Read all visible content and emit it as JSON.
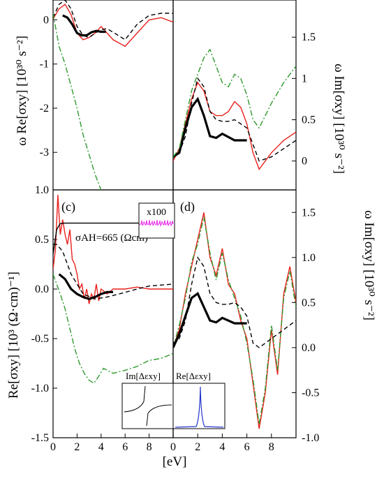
{
  "figure": {
    "xlabel": "[eV]",
    "left_ylabel_top": "ω Re[σxy] [10³⁰ s⁻²]",
    "left_ylabel_bottom": "Re[σxy] [10³ (Ω·cm)⁻¹]",
    "right_ylabel_top": "ω Im[σxy] [10³⁰ s⁻²]",
    "right_ylabel_bottom": "ω Im[σxy] [10³⁰ s⁻²]",
    "panel_labels": [
      "(c)",
      "(d)"
    ],
    "annotation_ah": "σAH=665 (Ωcm)⁻¹",
    "inset_x100_label": "x100",
    "inset_im_label": "Im[Δεxy]",
    "inset_re_label": "Re[Δεxy]"
  },
  "chart_data": [
    {
      "panel": "top-left",
      "type": "line",
      "ylabel": "ω Re[σxy] [10³⁰ s⁻²]",
      "xlim": [
        0,
        10
      ],
      "ylim": [
        -3.85,
        0.45
      ],
      "yticks": [
        "-3",
        "-2",
        "-1",
        "0"
      ],
      "series": [
        {
          "style": "solid",
          "color": "#e8211d",
          "x": [
            0,
            0.5,
            1,
            1.5,
            2,
            2.5,
            3,
            3.5,
            4,
            4.5,
            5,
            6,
            7,
            8,
            9,
            10
          ],
          "y": [
            0.02,
            0.25,
            0.35,
            0.12,
            -0.3,
            -0.45,
            -0.4,
            -0.3,
            -0.15,
            -0.3,
            -0.45,
            -0.6,
            -0.3,
            0.0,
            0.05,
            -0.05
          ]
        },
        {
          "style": "dashed",
          "color": "#000000",
          "x": [
            0,
            0.5,
            1,
            1.5,
            2,
            2.5,
            3,
            3.5,
            4,
            4.5,
            5,
            6,
            7,
            8,
            9,
            10
          ],
          "y": [
            0.05,
            0.35,
            0.45,
            0.25,
            -0.15,
            -0.35,
            -0.4,
            -0.3,
            -0.22,
            -0.2,
            -0.28,
            -0.45,
            -0.1,
            0.1,
            0.15,
            0.15
          ]
        },
        {
          "style": "thick-dotted",
          "color": "#000000",
          "x": [
            0.8,
            1.2,
            1.6,
            2,
            2.4,
            2.8,
            3.2,
            3.6,
            4,
            4.4
          ],
          "y": [
            0.1,
            0.05,
            -0.1,
            -0.3,
            -0.35,
            -0.35,
            -0.28,
            -0.25,
            -0.27,
            -0.27
          ]
        },
        {
          "style": "dashdot",
          "color": "#2e9a2e",
          "x": [
            0,
            0.5,
            1,
            1.5,
            2,
            2.5,
            3,
            3.5,
            4
          ],
          "y": [
            0.15,
            -0.6,
            -1.0,
            -1.5,
            -2.0,
            -2.6,
            -3.05,
            -3.5,
            -3.85
          ]
        }
      ]
    },
    {
      "panel": "top-right",
      "type": "line",
      "ylabel": "ω Im[σxy] [10³⁰ s⁻²]",
      "xlim": [
        0,
        10
      ],
      "ylim": [
        -0.35,
        1.95
      ],
      "yticks": [
        "0",
        "0.5",
        "1",
        "1.5"
      ],
      "series": [
        {
          "style": "solid",
          "color": "#e8211d",
          "x": [
            0,
            0.5,
            1,
            1.5,
            2,
            2.5,
            3,
            3.5,
            4,
            4.5,
            5,
            5.5,
            6,
            6.5,
            7,
            7.5,
            8,
            9,
            10
          ],
          "y": [
            0.0,
            0.15,
            0.45,
            0.75,
            0.95,
            0.85,
            0.6,
            0.55,
            0.55,
            0.6,
            0.72,
            0.65,
            0.45,
            0.1,
            -0.1,
            0.0,
            0.1,
            0.25,
            0.35
          ]
        },
        {
          "style": "dashed",
          "color": "#000000",
          "x": [
            0,
            0.5,
            1,
            1.5,
            2,
            2.5,
            3,
            3.5,
            4,
            4.5,
            5,
            6,
            7,
            8,
            9,
            10
          ],
          "y": [
            0.05,
            0.1,
            0.3,
            0.7,
            1.0,
            0.9,
            0.6,
            0.5,
            0.48,
            0.48,
            0.5,
            0.4,
            0.0,
            0.05,
            0.15,
            0.25
          ]
        },
        {
          "style": "thick-dotted",
          "color": "#000000",
          "x": [
            0,
            0.5,
            1,
            1.5,
            2,
            2.5,
            3,
            3.5,
            4,
            5,
            6
          ],
          "y": [
            0.05,
            0.1,
            0.4,
            0.65,
            0.75,
            0.55,
            0.3,
            0.28,
            0.33,
            0.25,
            0.25
          ]
        },
        {
          "style": "dashdot",
          "color": "#2e9a2e",
          "x": [
            0,
            0.5,
            1,
            1.5,
            2,
            2.5,
            3,
            3.5,
            4,
            4.5,
            5,
            5.5,
            6,
            6.5,
            7,
            7.5,
            8,
            9,
            10
          ],
          "y": [
            0.05,
            0.15,
            0.5,
            0.85,
            1.05,
            1.25,
            1.35,
            1.15,
            0.95,
            0.9,
            1.05,
            1.0,
            0.8,
            0.5,
            0.4,
            0.55,
            0.7,
            0.95,
            1.15
          ]
        }
      ]
    },
    {
      "panel": "bottom-left",
      "type": "line",
      "ylabel": "Re[σxy] [10³ (Ω·cm)⁻¹]",
      "xlim": [
        0,
        10
      ],
      "ylim": [
        -1.5,
        1.0
      ],
      "yticks": [
        "-1.5",
        "-1.0",
        "-0.5",
        "0.0",
        "0.5",
        "1.0"
      ],
      "series": [
        {
          "style": "solid",
          "color": "#e8211d",
          "name": "",
          "x": [
            0,
            0.2,
            0.4,
            0.6,
            0.8,
            1.0,
            1.2,
            1.4,
            1.6,
            1.8,
            2.0,
            2.2,
            2.4,
            2.6,
            2.8,
            3.0,
            3.2,
            3.4,
            3.6,
            3.8,
            4.0,
            4.5,
            5,
            6,
            7,
            8,
            9,
            10
          ],
          "y": [
            0.2,
            0.4,
            0.95,
            0.55,
            0.7,
            0.55,
            0.45,
            0.6,
            0.3,
            0.25,
            0.15,
            0.0,
            0.05,
            -0.1,
            0.0,
            -0.15,
            -0.05,
            -0.1,
            0.05,
            -0.12,
            0.0,
            -0.05,
            0.0,
            0.0,
            0.02,
            0.0,
            0.0,
            0.0
          ]
        },
        {
          "style": "dashed",
          "color": "#000000",
          "x": [
            0,
            0.3,
            0.8,
            1.5,
            2.5,
            3.5,
            4.5,
            5.5,
            7,
            8,
            10
          ],
          "y": [
            0.45,
            0.45,
            0.38,
            0.15,
            -0.05,
            -0.1,
            -0.08,
            -0.05,
            0.0,
            0.03,
            0.05
          ]
        },
        {
          "style": "thick-dotted",
          "color": "#000000",
          "x": [
            0.5,
            1.0,
            1.5,
            2.0,
            2.5,
            3.0,
            3.5,
            4.0,
            4.5,
            5.0
          ],
          "y": [
            0.15,
            0.1,
            0.0,
            -0.05,
            -0.08,
            -0.1,
            -0.08,
            -0.05,
            -0.03,
            -0.03
          ]
        },
        {
          "style": "dashdot",
          "color": "#2e9a2e",
          "x": [
            0,
            0.3,
            0.6,
            1.0,
            1.4,
            1.8,
            2.2,
            2.6,
            3.0,
            3.4,
            3.8,
            4.2,
            5.0,
            6.0,
            7.0,
            8.0,
            9.0,
            10
          ],
          "y": [
            0.15,
            0.05,
            -0.05,
            -0.2,
            -0.4,
            -0.6,
            -0.75,
            -0.85,
            -0.92,
            -0.95,
            -0.88,
            -0.8,
            -0.85,
            -0.82,
            -0.78,
            -0.72,
            -0.7,
            -0.65
          ]
        },
        {
          "style": "solid",
          "color": "#000000",
          "name": "σAH",
          "x": [
            0,
            0.3,
            0.6,
            1.0,
            2,
            4,
            6,
            10
          ],
          "y": [
            0.35,
            0.6,
            0.66,
            0.665,
            0.665,
            0.665,
            0.665,
            0.665
          ]
        }
      ]
    },
    {
      "panel": "bottom-right",
      "type": "line",
      "ylabel": "ω Im[σxy] [10³⁰ s⁻²]",
      "xlim": [
        0,
        10
      ],
      "ylim": [
        -1.0,
        1.75
      ],
      "yticks": [
        "-1.0",
        "-0.5",
        "0.0",
        "0.5",
        "1.0",
        "1.5"
      ],
      "xticks": [
        "0",
        "2",
        "4",
        "6",
        "8"
      ],
      "series": [
        {
          "style": "solid",
          "color": "#e8211d",
          "x": [
            0,
            0.5,
            1,
            1.5,
            2,
            2.5,
            3,
            3.5,
            4,
            4.5,
            5,
            5.5,
            6,
            6.5,
            7,
            7.5,
            8,
            8.5,
            9,
            9.5,
            10
          ],
          "y": [
            0.0,
            0.2,
            0.6,
            0.9,
            1.2,
            1.5,
            1.0,
            0.8,
            1.1,
            0.7,
            0.6,
            0.3,
            0.1,
            -0.4,
            -0.9,
            -0.5,
            0.2,
            -0.3,
            0.6,
            0.9,
            0.5
          ]
        },
        {
          "style": "dashdot",
          "color": "#2e9a2e",
          "x": [
            0,
            0.5,
            1,
            1.5,
            2,
            2.5,
            3,
            3.5,
            4,
            4.5,
            5,
            5.5,
            6,
            6.5,
            7,
            7.5,
            8,
            8.5,
            9,
            9.5,
            10
          ],
          "y": [
            0.0,
            0.25,
            0.55,
            0.95,
            1.15,
            1.45,
            1.05,
            0.75,
            1.05,
            0.75,
            0.55,
            0.35,
            0.05,
            -0.35,
            -0.85,
            -0.45,
            0.25,
            -0.25,
            0.55,
            0.85,
            0.45
          ]
        },
        {
          "style": "dashed",
          "color": "#000000",
          "x": [
            0,
            0.5,
            1,
            1.5,
            2,
            2.5,
            3,
            3.5,
            4,
            4.5,
            5,
            5.5,
            6,
            6.5,
            7,
            8,
            9,
            10
          ],
          "y": [
            0.05,
            0.1,
            0.3,
            0.7,
            1.0,
            0.9,
            0.6,
            0.5,
            0.48,
            0.48,
            0.5,
            0.45,
            0.35,
            0.05,
            0.0,
            0.1,
            0.2,
            0.3
          ]
        },
        {
          "style": "thick-dotted",
          "color": "#000000",
          "x": [
            0,
            0.5,
            1,
            1.5,
            2,
            2.5,
            3,
            3.5,
            4,
            5,
            6
          ],
          "y": [
            0.0,
            0.15,
            0.35,
            0.55,
            0.6,
            0.45,
            0.3,
            0.28,
            0.33,
            0.27,
            0.27
          ]
        }
      ]
    }
  ]
}
